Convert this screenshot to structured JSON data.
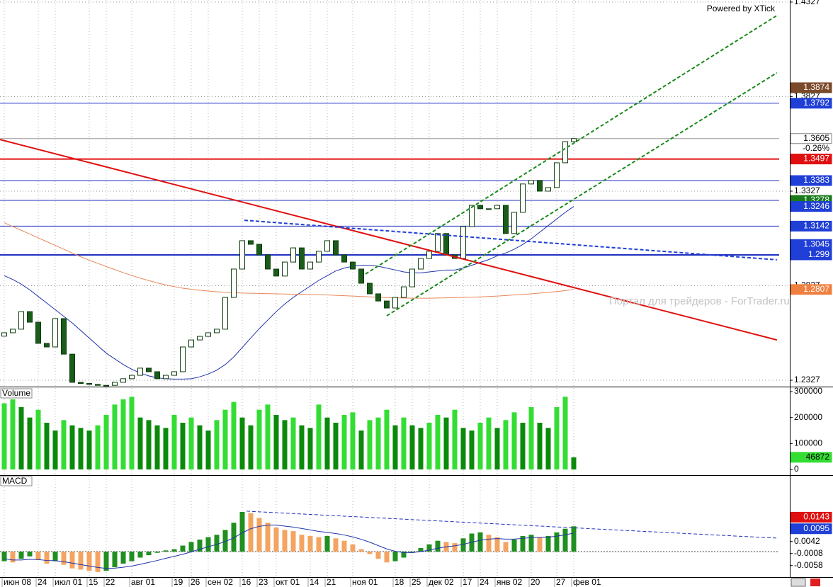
{
  "branding": "Powered by XTick",
  "watermark": "Портал для трейдеров - ForTrader.ru",
  "chart_data": [
    {
      "type": "candlestick",
      "categories": [
        "июн 08",
        null,
        null,
        null,
        "24",
        null,
        "июл 01",
        null,
        null,
        null,
        "15",
        null,
        "22",
        null,
        null,
        "авг 01",
        null,
        null,
        null,
        null,
        "19",
        null,
        "26",
        null,
        "сен 02",
        null,
        null,
        null,
        "16",
        null,
        "23",
        null,
        "окт 01",
        null,
        null,
        null,
        "14",
        null,
        "21",
        null,
        null,
        "ноя 01",
        null,
        null,
        null,
        null,
        "18",
        null,
        "25",
        null,
        "дек 02",
        null,
        null,
        null,
        "17",
        null,
        "24",
        null,
        "янв 02",
        null,
        null,
        null,
        "20",
        null,
        null,
        "27",
        null,
        "фев 01"
      ],
      "open": [
        1.256,
        1.2578,
        1.2597,
        1.269,
        1.2634,
        1.2522,
        1.2503,
        1.2653,
        1.2465,
        1.2316,
        1.231,
        1.2305,
        1.23,
        1.23,
        1.2316,
        1.2335,
        1.2353,
        1.2391,
        1.2372,
        1.2335,
        1.2353,
        1.2372,
        1.2503,
        1.254,
        1.2559,
        1.2578,
        1.2597,
        1.2765,
        1.2915,
        1.3065,
        1.3046,
        1.299,
        1.2915,
        1.2878,
        1.2952,
        1.3027,
        1.2915,
        1.2952,
        1.3009,
        1.3065,
        1.299,
        1.2952,
        1.2915,
        1.284,
        1.2784,
        1.2746,
        1.2709,
        1.2765,
        1.2821,
        1.2915,
        1.2971,
        1.3009,
        1.3103,
        1.299,
        1.2971,
        1.314,
        1.3252,
        1.3234,
        1.3234,
        1.3252,
        1.3103,
        1.3215,
        1.3365,
        1.3384,
        1.3327,
        1.3346,
        1.3477,
        1.3589
      ],
      "close": [
        1.2578,
        1.2597,
        1.269,
        1.2634,
        1.2522,
        1.2503,
        1.2653,
        1.2465,
        1.2316,
        1.231,
        1.2305,
        1.23,
        1.23,
        1.2316,
        1.2335,
        1.2353,
        1.2391,
        1.2372,
        1.2335,
        1.2353,
        1.2372,
        1.2503,
        1.254,
        1.2559,
        1.2578,
        1.2597,
        1.2765,
        1.2915,
        1.3065,
        1.3046,
        1.299,
        1.2915,
        1.2878,
        1.2952,
        1.3027,
        1.2915,
        1.2952,
        1.3009,
        1.3065,
        1.299,
        1.2952,
        1.2915,
        1.284,
        1.2784,
        1.2746,
        1.2709,
        1.2765,
        1.2821,
        1.2915,
        1.2971,
        1.3009,
        1.3103,
        1.299,
        1.2971,
        1.314,
        1.3252,
        1.3234,
        1.3234,
        1.3252,
        1.3103,
        1.3215,
        1.3365,
        1.3384,
        1.3327,
        1.3346,
        1.3477,
        1.3589,
        1.3605
      ],
      "up_color": "#ffffff",
      "down_color": "#1a5c1a",
      "candle_stroke": "#0d3d0d",
      "series": [
        {
          "color": "#2233aa",
          "values": [
            1.288,
            1.286,
            1.2835,
            1.2805,
            1.277,
            1.2735,
            1.27,
            1.2665,
            1.263,
            1.259,
            1.255,
            1.251,
            1.247,
            1.244,
            1.241,
            1.2385,
            1.2365,
            1.235,
            1.234,
            1.2335,
            1.2333,
            1.2333,
            1.2335,
            1.2345,
            1.236,
            1.238,
            1.241,
            1.245,
            1.25,
            1.255,
            1.26,
            1.2645,
            1.269,
            1.273,
            1.2765,
            1.2795,
            1.2825,
            1.2855,
            1.288,
            1.2905,
            1.292,
            1.293,
            1.2935,
            1.2935,
            1.293,
            1.292,
            1.291,
            1.29,
            1.2895,
            1.2895,
            1.29,
            1.2905,
            1.291,
            1.291,
            1.292,
            1.2935,
            1.295,
            1.2965,
            1.2985,
            1.3,
            1.302,
            1.3045,
            1.3075,
            1.311,
            1.3145,
            1.318,
            1.3215,
            1.3246
          ]
        },
        {
          "color": "#e8875a",
          "values": [
            1.316,
            1.314,
            1.312,
            1.31,
            1.308,
            1.306,
            1.304,
            1.302,
            1.3,
            1.298,
            1.2962,
            1.2945,
            1.2928,
            1.2912,
            1.2896,
            1.2881,
            1.2867,
            1.2854,
            1.2842,
            1.2831,
            1.2822,
            1.2814,
            1.2808,
            1.2803,
            1.2799,
            1.2795,
            1.2792,
            1.279,
            1.2788,
            1.2787,
            1.2786,
            1.2785,
            1.2784,
            1.2783,
            1.2782,
            1.2781,
            1.278,
            1.2779,
            1.2778,
            1.2776,
            1.2774,
            1.2772,
            1.277,
            1.2768,
            1.2766,
            1.2764,
            1.2763,
            1.2762,
            1.2761,
            1.2761,
            1.2761,
            1.2762,
            1.2763,
            1.2764,
            1.2765,
            1.2766,
            1.2768,
            1.277,
            1.2772,
            1.2775,
            1.2778,
            1.2781,
            1.2784,
            1.2788,
            1.2792,
            1.2796,
            1.2801,
            1.2807
          ]
        }
      ],
      "trendlines": [
        {
          "x": [
            -0.5,
            90.9
          ],
          "y": [
            1.36,
            1.254
          ],
          "color": "#e01010",
          "width": 2,
          "dash": false
        },
        {
          "x": [
            28.25,
            90.9
          ],
          "y": [
            1.3173,
            1.2964
          ],
          "color": "#1f3fd6",
          "width": 2,
          "dash": true
        },
        {
          "x": [
            42.5,
            90.9
          ],
          "y": [
            1.2889,
            1.4256
          ],
          "color": "#1a8a1a",
          "width": 2,
          "dash": true
        },
        {
          "x": [
            45,
            90.9
          ],
          "y": [
            1.2668,
            1.3953
          ],
          "color": "#1a8a1a",
          "width": 2,
          "dash": true
        }
      ],
      "levels": [
        {
          "value": 1.3792,
          "color": "#2030c0",
          "width": 1
        },
        {
          "value": 1.3605,
          "color": "#999999",
          "width": 1
        },
        {
          "value": 1.3497,
          "color": "#e01010",
          "width": 2
        },
        {
          "value": 1.3383,
          "color": "#2030c0",
          "width": 1
        },
        {
          "value": 1.3278,
          "color": "#2030c0",
          "width": 1
        },
        {
          "value": 1.3142,
          "color": "#2030c0",
          "width": 1
        },
        {
          "value": 1.299,
          "color": "#2030c0",
          "width": 2
        }
      ],
      "price_labels": [
        {
          "value": 1.3874,
          "color": "#7b4a2b",
          "text_color": "#ffffff"
        },
        {
          "value": 1.3792,
          "color": "#1f3fd6",
          "text_color": "#ffffff"
        },
        {
          "value": 1.3605,
          "color": "#ffffff",
          "text_color": "#000000"
        },
        {
          "value": 1.3497,
          "color": "#e01010",
          "text_color": "#ffffff"
        },
        {
          "value": 1.3383,
          "color": "#1f3fd6",
          "text_color": "#ffffff"
        },
        {
          "value": 1.3278,
          "color": "#1a7a1a",
          "text_color": "#ffffff"
        },
        {
          "value": 1.3246,
          "color": "#1f3fd6",
          "text_color": "#ffffff"
        },
        {
          "value": 1.3142,
          "color": "#1f3fd6",
          "text_color": "#ffffff"
        },
        {
          "value": 1.3045,
          "color": "#1f3fd6",
          "text_color": "#ffffff"
        },
        {
          "value": 1.299,
          "color": "#1f3fd6",
          "text_color": "#ffffff"
        },
        {
          "value": 1.2807,
          "color": "#f08040",
          "text_color": "#ffffff"
        }
      ],
      "change": "-0.26%",
      "ylim": [
        1.2297,
        1.4338
      ],
      "yticks": [
        1.4327,
        1.3827,
        1.3327,
        1.2827,
        1.2327
      ],
      "grid": true
    },
    {
      "type": "bar",
      "title": "Volume",
      "values": [
        255000,
        270000,
        240000,
        200000,
        230000,
        180000,
        150000,
        190000,
        170000,
        160000,
        150000,
        170000,
        210000,
        250000,
        270000,
        280000,
        200000,
        190000,
        170000,
        160000,
        210000,
        180000,
        200000,
        170000,
        150000,
        190000,
        230000,
        260000,
        200000,
        170000,
        230000,
        250000,
        210000,
        190000,
        200000,
        170000,
        160000,
        250000,
        200000,
        180000,
        210000,
        220000,
        150000,
        190000,
        200000,
        230000,
        170000,
        200000,
        170000,
        160000,
        180000,
        210000,
        200000,
        230000,
        160000,
        150000,
        180000,
        200000,
        160000,
        190000,
        220000,
        180000,
        240000,
        180000,
        160000,
        240000,
        280000,
        46872
      ],
      "up_color": "#33dd33",
      "down_color": "#0a8a0a",
      "price_labels": [
        {
          "value": 46872,
          "color": "#33dd33",
          "text_color": "#000000"
        }
      ],
      "ylim": [
        -19091,
        313636
      ],
      "yticks": [
        300000,
        200000,
        100000,
        0
      ]
    },
    {
      "type": "macd",
      "title": "MACD",
      "values": [
        -0.004,
        -0.0045,
        -0.003,
        -0.002,
        -0.0035,
        -0.005,
        -0.004,
        -0.0055,
        -0.007,
        -0.0075,
        -0.008,
        -0.0085,
        -0.008,
        -0.0065,
        -0.005,
        -0.004,
        -0.0025,
        -0.0015,
        -0.0005,
        0.0005,
        0.001,
        0.0025,
        0.004,
        0.005,
        0.006,
        0.007,
        0.009,
        0.012,
        0.0165,
        0.016,
        0.014,
        0.012,
        0.01,
        0.009,
        0.0085,
        0.007,
        0.0065,
        0.006,
        0.0065,
        0.0055,
        0.0045,
        0.003,
        0.001,
        -0.001,
        -0.003,
        -0.0045,
        -0.004,
        -0.0025,
        -0.0005,
        0.0015,
        0.003,
        0.0045,
        0.004,
        0.0035,
        0.0055,
        0.0075,
        0.008,
        0.007,
        0.006,
        0.004,
        0.005,
        0.0065,
        0.007,
        0.006,
        0.0065,
        0.008,
        0.0095,
        0.0105
      ],
      "signal": {
        "color": "#2233aa",
        "values": [
          -0.003,
          -0.0035,
          -0.0035,
          -0.0032,
          -0.0033,
          -0.0037,
          -0.0038,
          -0.0042,
          -0.0048,
          -0.0054,
          -0.006,
          -0.0066,
          -0.007,
          -0.0069,
          -0.0065,
          -0.006,
          -0.0053,
          -0.0045,
          -0.0037,
          -0.0028,
          -0.002,
          -0.0011,
          -0.0001,
          0.001,
          0.002,
          0.003,
          0.0042,
          0.0057,
          0.0078,
          0.0095,
          0.0105,
          0.011,
          0.011,
          0.0106,
          0.0102,
          0.0096,
          0.009,
          0.0084,
          0.008,
          0.0075,
          0.0069,
          0.0061,
          0.0051,
          0.0039,
          0.0025,
          0.0011,
          0.0001,
          -0.0004,
          -0.0004,
          0.0,
          0.0006,
          0.0014,
          0.002,
          0.0024,
          0.003,
          0.0039,
          0.0047,
          0.0052,
          0.0054,
          0.0052,
          0.0052,
          0.0055,
          0.0058,
          0.0059,
          0.006,
          0.0064,
          0.007,
          0.0077
        ]
      },
      "up_color": "#1f8f1f",
      "down_color": "#f4a460",
      "trendlines": [
        {
          "x": [
            28.5,
            90.9
          ],
          "y": [
            0.0168,
            0.0056
          ],
          "color": "#2030c0",
          "width": 1,
          "dash": true
        }
      ],
      "price_labels": [
        {
          "value": 0.0143,
          "color": "#e01010",
          "text_color": "#ffffff"
        },
        {
          "value": 0.0095,
          "color": "#1f3fd6",
          "text_color": "#ffffff"
        }
      ],
      "ylim": [
        -0.0106,
        0.0315
      ],
      "yticks": [
        0.0042,
        -0.0008,
        -0.0058
      ]
    }
  ]
}
